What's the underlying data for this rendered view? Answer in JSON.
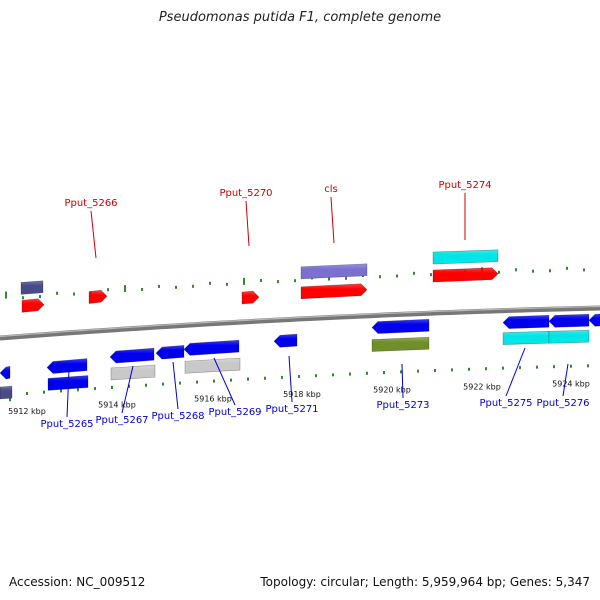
{
  "title": "Pseudomonas putida F1, complete genome",
  "footer": {
    "accession": "Accession: NC_009512",
    "summary": "Topology: circular; Length: 5,959,964 bp; Genes: 5,347"
  },
  "colors": {
    "forward_cds": "#ff0000",
    "reverse_cds": "#0000ee",
    "forward_label": "#cc0000",
    "reverse_label": "#0000cc",
    "backbone": "#777777",
    "tick": "#2e8b2e",
    "lilac": "#7b6fd0",
    "cyan": "#00e5e5",
    "olive": "#6f8f2a",
    "grey": "#c8c8c8",
    "dark_slate": "#4a4a8a"
  },
  "scale_labels": [
    "5912 kbp",
    "5914 kbp",
    "5916 kbp",
    "5918 kbp",
    "5920 kbp",
    "5922 kbp",
    "5924 kbp"
  ],
  "top_labels": [
    {
      "name": "Pput_5266",
      "color": "red"
    },
    {
      "name": "Pput_5270",
      "color": "red"
    },
    {
      "name": "cls",
      "color": "red"
    },
    {
      "name": "Pput_5274",
      "color": "red"
    }
  ],
  "bottom_labels": [
    {
      "name": "Pput_5265"
    },
    {
      "name": "Pput_5267"
    },
    {
      "name": "Pput_5268"
    },
    {
      "name": "Pput_5269"
    },
    {
      "name": "Pput_5271"
    },
    {
      "name": "Pput_5273"
    },
    {
      "name": "Pput_5275"
    },
    {
      "name": "Pput_5276"
    }
  ]
}
